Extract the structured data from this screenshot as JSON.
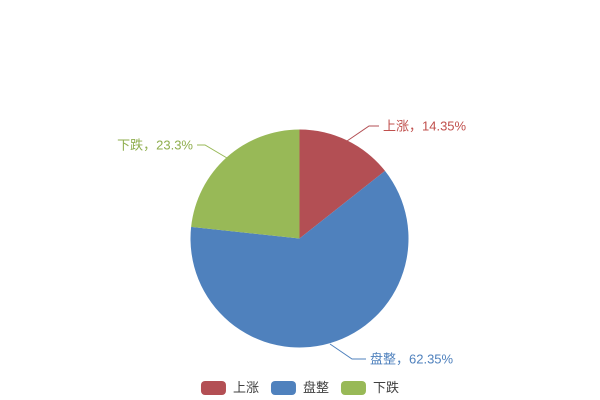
{
  "chart_data": {
    "type": "pie",
    "title": "",
    "categories": [
      "上涨",
      "盘整",
      "下跌"
    ],
    "values": [
      14.35,
      62.35,
      23.3
    ],
    "value_unit": "%",
    "slice_colors": [
      "#b34f54",
      "#4f81bd",
      "#98b957"
    ],
    "slice_labels": [
      "上涨，14.35%",
      "盘整，62.35%",
      "下跌，23.3%"
    ],
    "slice_label_colors": [
      "#c0504d",
      "#4f81bd",
      "#8fae4e"
    ],
    "start_angle": "top",
    "direction": "clockwise",
    "center": [
      299.5,
      238.5
    ],
    "radius": 109,
    "background_color": "#ffffff",
    "legend_position": "bottom-center",
    "callouts": [
      {
        "line": [
          [
            347,
            141
          ],
          [
            369,
            126
          ],
          [
            379,
            126
          ]
        ],
        "text": [
          383,
          126
        ],
        "align": "start"
      },
      {
        "line": [
          [
            330,
            344
          ],
          [
            352,
            359
          ],
          [
            366,
            359
          ]
        ],
        "text": [
          370,
          359
        ],
        "align": "start"
      },
      {
        "line": [
          [
            227,
            158
          ],
          [
            205,
            145
          ],
          [
            197,
            145
          ]
        ],
        "text": [
          193,
          145
        ],
        "align": "end"
      }
    ]
  },
  "legend": {
    "items": [
      {
        "label": "上涨",
        "color": "#b34f54"
      },
      {
        "label": "盘整",
        "color": "#4f81bd"
      },
      {
        "label": "下跌",
        "color": "#98b957"
      }
    ]
  }
}
